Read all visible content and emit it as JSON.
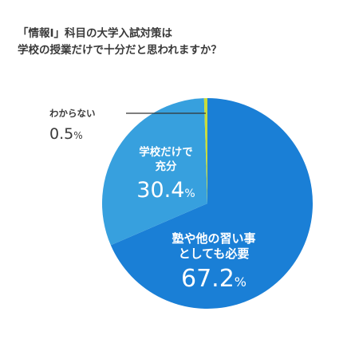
{
  "title_lines": [
    "「情報Ⅰ」科目の大学入試対策は",
    "学校の授業だけで十分だと思われますか？"
  ],
  "chart_data": {
    "type": "pie",
    "title": "「情報Ⅰ」科目の大学入試対策は学校の授業だけで十分だと思われますか？",
    "slices": [
      {
        "label_lines": [
          "塾や他の習い事",
          "としても必要"
        ],
        "value": 67.2,
        "number": "67.2",
        "unit": "%",
        "color": "#1a7fd6"
      },
      {
        "label_lines": [
          "学校だけで",
          "充分"
        ],
        "value": 30.4,
        "number": "30.4",
        "unit": "%",
        "color": "#37a0de"
      },
      {
        "label_lines": [
          "わからない"
        ],
        "value": 0.5,
        "number": "0.5",
        "unit": "%",
        "color": "#c9dc3a"
      }
    ],
    "legend": "none"
  }
}
